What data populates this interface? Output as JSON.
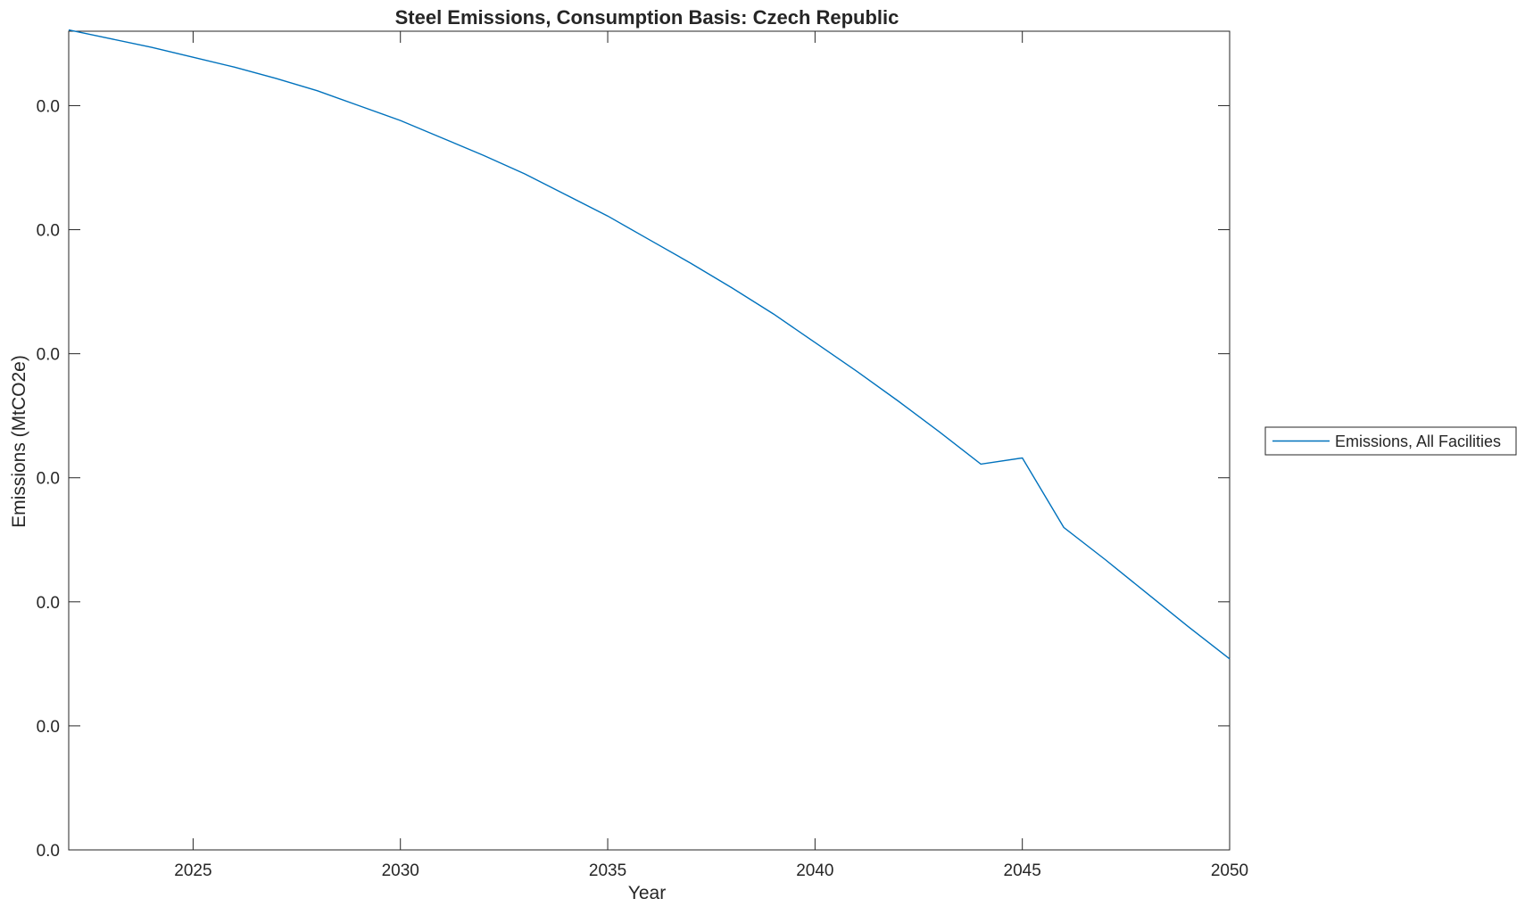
{
  "chart_data": {
    "type": "line",
    "title": "Steel Emissions, Consumption Basis: Czech Republic",
    "xlabel": "Year",
    "ylabel": "Emissions (MtCO2e)",
    "xlim": [
      2022,
      2050
    ],
    "ylim": [
      0,
      0.0066
    ],
    "x_ticks": [
      2025,
      2030,
      2035,
      2040,
      2045,
      2050
    ],
    "x_tick_labels": [
      "2025",
      "2030",
      "2035",
      "2040",
      "2045",
      "2050"
    ],
    "y_ticks": [
      0,
      0.001,
      0.002,
      0.003,
      0.004,
      0.005,
      0.006
    ],
    "y_tick_labels": [
      "0.0",
      "0.0",
      "0.0",
      "0.0",
      "0.0",
      "0.0",
      "0.0"
    ],
    "grid": false,
    "legend_position": "outside-right",
    "series": [
      {
        "name": "Emissions, All Facilities",
        "color": "#0072BD",
        "x": [
          2022,
          2023,
          2024,
          2025,
          2026,
          2027,
          2028,
          2029,
          2030,
          2031,
          2032,
          2033,
          2034,
          2035,
          2036,
          2037,
          2038,
          2039,
          2040,
          2041,
          2042,
          2043,
          2044,
          2045,
          2046,
          2047,
          2048,
          2049,
          2050
        ],
        "y": [
          0.00661,
          0.00654,
          0.00647,
          0.00639,
          0.00631,
          0.00622,
          0.00612,
          0.006,
          0.00588,
          0.00574,
          0.0056,
          0.00545,
          0.00528,
          0.00511,
          0.00492,
          0.00473,
          0.00453,
          0.00432,
          0.00409,
          0.00386,
          0.00362,
          0.00337,
          0.00311,
          0.00316,
          0.0026,
          0.00234,
          0.00207,
          0.0018,
          0.00154
        ]
      }
    ]
  }
}
